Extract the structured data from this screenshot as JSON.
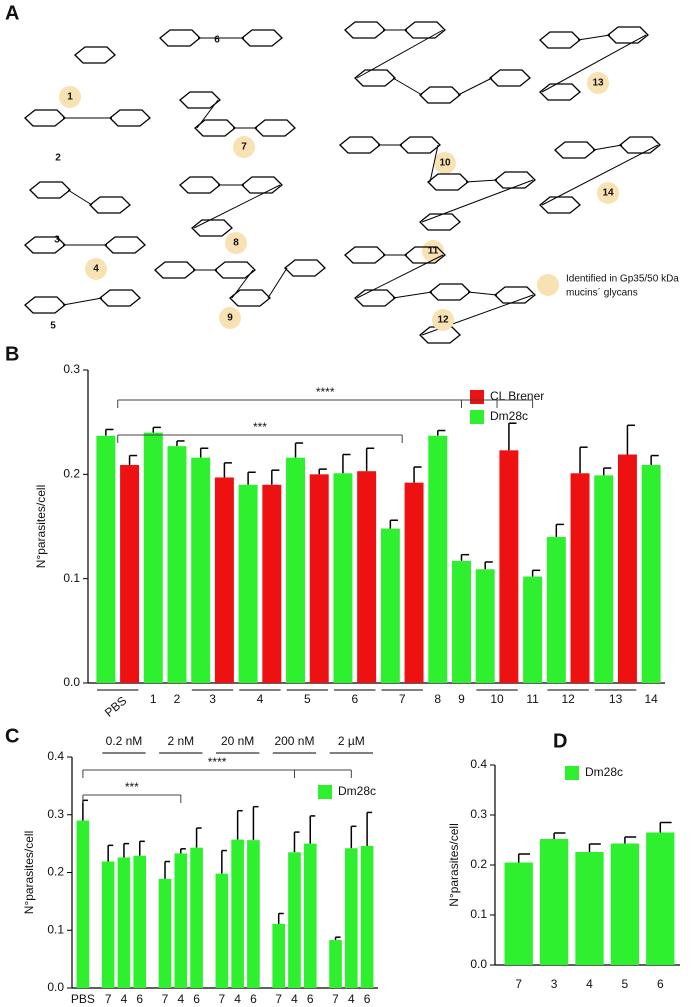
{
  "structures": {
    "panel": "A",
    "compounds": [
      {
        "number": "1",
        "highlighted": true
      },
      {
        "number": "2",
        "highlighted": false
      },
      {
        "number": "3",
        "highlighted": false
      },
      {
        "number": "4",
        "highlighted": true
      },
      {
        "number": "5",
        "highlighted": false
      },
      {
        "number": "6",
        "highlighted": false
      },
      {
        "number": "7",
        "highlighted": true
      },
      {
        "number": "8",
        "highlighted": true
      },
      {
        "number": "9",
        "highlighted": true
      },
      {
        "number": "10",
        "highlighted": true
      },
      {
        "number": "11",
        "highlighted": true
      },
      {
        "number": "12",
        "highlighted": true
      },
      {
        "number": "13",
        "highlighted": true
      },
      {
        "number": "14",
        "highlighted": true
      }
    ],
    "highlight_color": "#f8e2b4",
    "legend_lines": [
      "Identified in Gp35/50 kDa",
      "mucins´ glycans"
    ]
  },
  "chart_data": [
    {
      "panel": "B",
      "type": "bar",
      "ylabel": "N°parasites/cell",
      "categories": [
        "PBS",
        "1",
        "2",
        "3",
        "4",
        "5",
        "6",
        "7",
        "8",
        "9",
        "10",
        "11",
        "12",
        "13",
        "14"
      ],
      "series": [
        {
          "name": "CL Brener",
          "color": "#ee1111",
          "values": [
            0.209,
            null,
            null,
            0.197,
            0.19,
            0.2,
            0.203,
            0.192,
            null,
            null,
            0.223,
            null,
            0.201,
            0.219,
            null
          ],
          "errors": [
            0.009,
            null,
            null,
            0.014,
            0.014,
            0.005,
            0.022,
            0.015,
            null,
            null,
            0.026,
            null,
            0.025,
            0.028,
            null
          ]
        },
        {
          "name": "Dm28c",
          "color": "#2ff02f",
          "values": [
            0.237,
            0.24,
            0.227,
            0.216,
            0.19,
            0.216,
            0.201,
            0.148,
            0.237,
            0.117,
            0.109,
            0.102,
            0.14,
            0.199,
            0.209
          ],
          "errors": [
            0.006,
            0.005,
            0.005,
            0.009,
            0.012,
            0.014,
            0.018,
            0.008,
            0.005,
            0.006,
            0.007,
            0.006,
            0.012,
            0.007,
            0.009
          ]
        }
      ],
      "ylim": [
        0,
        0.3
      ],
      "yticks": [
        {
          "value": 0,
          "label": "0.0"
        },
        0.1,
        0.2,
        0.3
      ],
      "legend": "top-right",
      "significance": [
        {
          "label": "****",
          "from": "PBS",
          "to": [
            "9",
            "10",
            "11"
          ]
        },
        {
          "label": "***",
          "from": "PBS",
          "to": [
            "7"
          ]
        }
      ]
    },
    {
      "panel": "C",
      "type": "grouped_bar",
      "ylabel": "N°parasites/cell",
      "series": [
        {
          "name": "Dm28c",
          "color": "#2ff02f"
        }
      ],
      "control": {
        "category": "PBS",
        "value": 0.29,
        "error": 0.035
      },
      "groups": [
        {
          "label": "0.2 nM",
          "categories": [
            "7",
            "4",
            "6"
          ],
          "values": [
            0.219,
            0.226,
            0.229
          ],
          "errors": [
            0.028,
            0.024,
            0.025
          ]
        },
        {
          "label": "2 nM",
          "categories": [
            "7",
            "4",
            "6"
          ],
          "values": [
            0.189,
            0.233,
            0.243
          ],
          "errors": [
            0.03,
            0.008,
            0.034
          ]
        },
        {
          "label": "20 nM",
          "categories": [
            "7",
            "4",
            "6"
          ],
          "values": [
            0.198,
            0.257,
            0.256
          ],
          "errors": [
            0.04,
            0.05,
            0.058
          ]
        },
        {
          "label": "200 nM",
          "categories": [
            "7",
            "4",
            "6"
          ],
          "values": [
            0.111,
            0.235,
            0.25
          ],
          "errors": [
            0.018,
            0.035,
            0.048
          ]
        },
        {
          "label": "2 µM",
          "categories": [
            "7",
            "4",
            "6"
          ],
          "values": [
            0.083,
            0.242,
            0.246
          ],
          "errors": [
            0.005,
            0.038,
            0.058
          ]
        }
      ],
      "ylim": [
        0,
        0.4
      ],
      "yticks": [
        {
          "value": 0,
          "label": "0.0"
        },
        0.1,
        0.2,
        0.3,
        0.4
      ],
      "legend": "top-right",
      "significance": [
        {
          "label": "****",
          "from": "PBS",
          "to": [
            "200 nM",
            "2 µM"
          ]
        },
        {
          "label": "***",
          "from": "PBS",
          "to": [
            "2 nM"
          ]
        }
      ]
    },
    {
      "panel": "D",
      "type": "bar",
      "ylabel": "N°parasites/cell",
      "categories": [
        "7",
        "3",
        "4",
        "5",
        "6"
      ],
      "series": [
        {
          "name": "Dm28c",
          "color": "#2ff02f",
          "values": [
            0.205,
            0.252,
            0.226,
            0.243,
            0.265
          ],
          "errors": [
            0.017,
            0.012,
            0.016,
            0.013,
            0.02
          ]
        }
      ],
      "ylim": [
        0,
        0.4
      ],
      "yticks": [
        {
          "value": 0,
          "label": "0.0"
        },
        0.1,
        0.2,
        0.3,
        0.4
      ],
      "legend": "top-right"
    }
  ]
}
